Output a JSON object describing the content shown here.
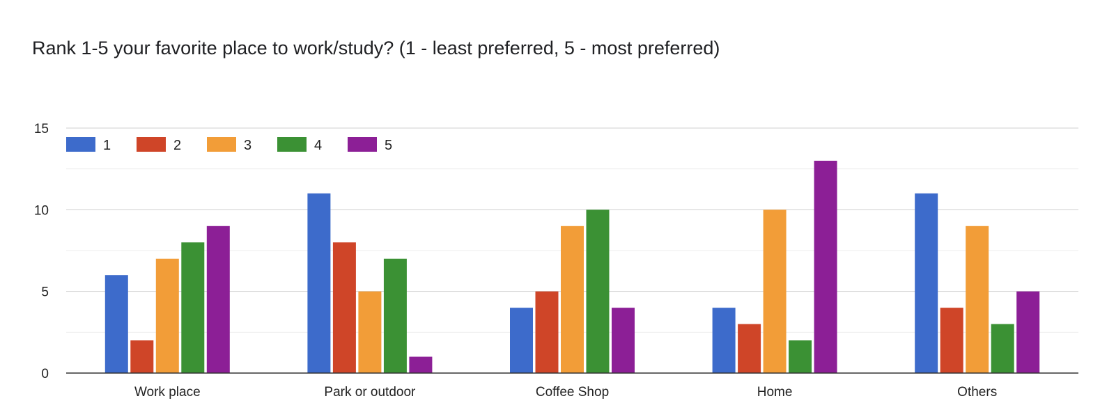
{
  "chart_data": {
    "type": "bar",
    "title": "Rank 1-5 your favorite place to work/study? (1 - least preferred, 5 - most preferred)",
    "xlabel": "",
    "ylabel": "",
    "categories": [
      "Work place",
      "Park or outdoor",
      "Coffee Shop",
      "Home",
      "Others"
    ],
    "series": [
      {
        "name": "1",
        "color": "#3d6bcb",
        "values": [
          6,
          11,
          4,
          4,
          11
        ]
      },
      {
        "name": "2",
        "color": "#cf4528",
        "values": [
          2,
          8,
          5,
          3,
          4
        ]
      },
      {
        "name": "3",
        "color": "#f29d38",
        "values": [
          7,
          5,
          9,
          10,
          9
        ]
      },
      {
        "name": "4",
        "color": "#3b9134",
        "values": [
          8,
          7,
          10,
          2,
          3
        ]
      },
      {
        "name": "5",
        "color": "#8c1f96",
        "values": [
          9,
          1,
          4,
          13,
          5
        ]
      }
    ],
    "ylim": [
      0,
      15
    ],
    "yticks": [
      0,
      5,
      10,
      15
    ],
    "grid": true,
    "legend_position": "top-left"
  }
}
